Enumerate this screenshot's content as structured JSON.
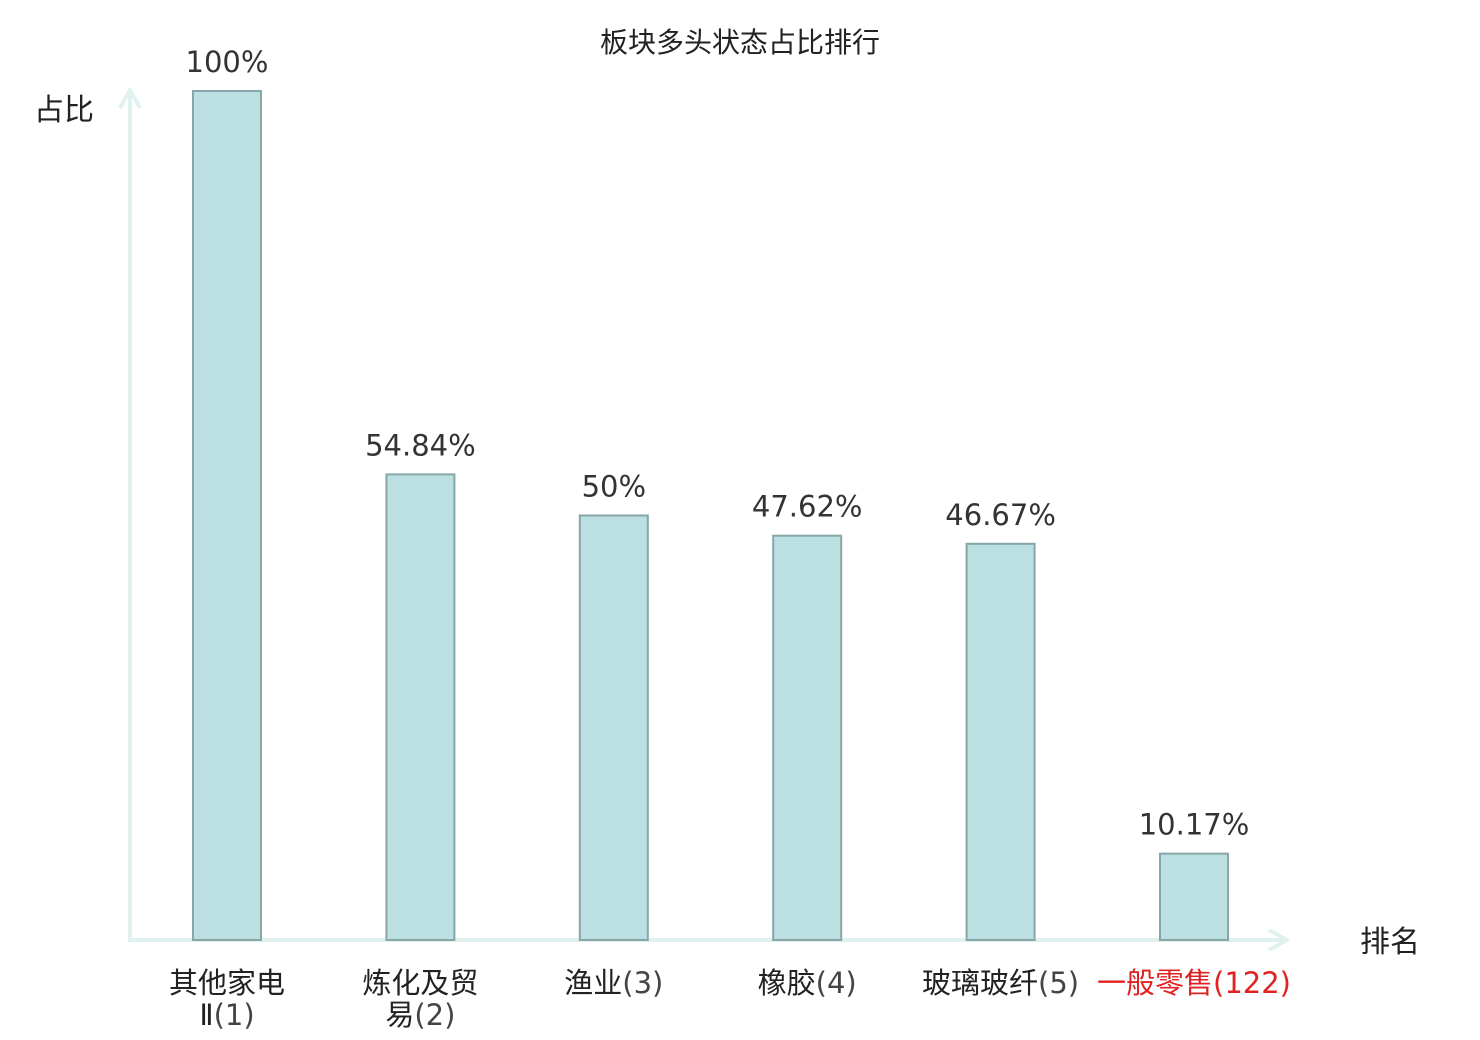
{
  "chart_data": {
    "type": "bar",
    "title": "板块多头状态占比排行",
    "ylabel": "占比",
    "xlabel": "排名",
    "ylim": [
      0,
      100
    ],
    "grid": false,
    "categories": [
      {
        "name": "其他家电Ⅱ",
        "rank": "(1)",
        "lines": [
          "其他家电",
          "Ⅱ"
        ],
        "highlight": false
      },
      {
        "name": "炼化及贸易",
        "rank": "(2)",
        "lines": [
          "炼化及贸",
          "易"
        ],
        "highlight": false
      },
      {
        "name": "渔业",
        "rank": "(3)",
        "lines": [
          "渔业"
        ],
        "highlight": false
      },
      {
        "name": "橡胶",
        "rank": "(4)",
        "lines": [
          "橡胶"
        ],
        "highlight": false
      },
      {
        "name": "玻璃玻纤",
        "rank": "(5)",
        "lines": [
          "玻璃玻纤"
        ],
        "highlight": false
      },
      {
        "name": "一般零售",
        "rank": "(122)",
        "lines": [
          "一般零售"
        ],
        "highlight": true
      }
    ],
    "values": [
      100,
      54.84,
      50,
      47.62,
      46.67,
      10.17
    ],
    "value_labels": [
      "100%",
      "54.84%",
      "50%",
      "47.62%",
      "46.67%",
      "10.17%"
    ],
    "colors": {
      "bar_fill": "#bce0e2",
      "bar_stroke": "#86a6a8",
      "axis": "#e0f2ef",
      "highlight": "#e02222"
    }
  }
}
